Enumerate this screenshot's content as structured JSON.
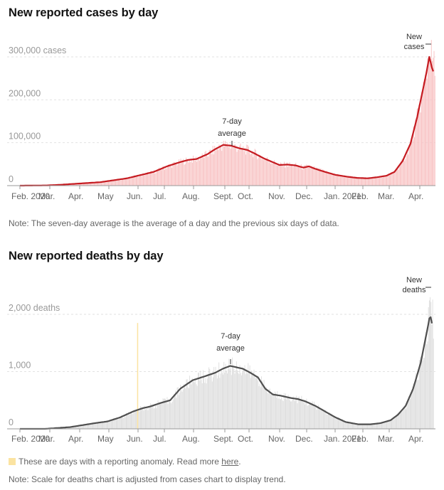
{
  "chart_data": [
    {
      "type": "bar",
      "title": "New reported cases by day",
      "x_ticks": [
        "Feb. 2020",
        "Mar.",
        "Apr.",
        "May",
        "Jun.",
        "Jul.",
        "Aug.",
        "Sept.",
        "Oct.",
        "Nov.",
        "Dec.",
        "Jan. 2021",
        "Feb.",
        "Mar.",
        "Apr."
      ],
      "y_ticks": [
        {
          "value": 0,
          "label": "0"
        },
        {
          "value": 100000,
          "label": "100,000"
        },
        {
          "value": 200000,
          "label": "200,000"
        },
        {
          "value": 300000,
          "label": "300,000 cases"
        }
      ],
      "ylim": [
        0,
        300000
      ],
      "xlim_months": [
        0,
        14.7
      ],
      "series": [
        {
          "name": "7-day average",
          "style": "line",
          "color": "#c51b21",
          "points": [
            [
              0,
              0
            ],
            [
              1,
              500
            ],
            [
              1.5,
              2000
            ],
            [
              2,
              4000
            ],
            [
              3,
              8000
            ],
            [
              4,
              17000
            ],
            [
              5,
              32000
            ],
            [
              5.5,
              45000
            ],
            [
              6,
              55000
            ],
            [
              6.3,
              60000
            ],
            [
              6.6,
              62000
            ],
            [
              7,
              73000
            ],
            [
              7.3,
              85000
            ],
            [
              7.6,
              95000
            ],
            [
              7.9,
              93000
            ],
            [
              8.2,
              87000
            ],
            [
              8.5,
              83000
            ],
            [
              8.8,
              74000
            ],
            [
              9.1,
              64000
            ],
            [
              9.4,
              56000
            ],
            [
              9.7,
              48000
            ],
            [
              10,
              49000
            ],
            [
              10.3,
              47000
            ],
            [
              10.6,
              42000
            ],
            [
              10.8,
              45000
            ],
            [
              11,
              40000
            ],
            [
              11.4,
              32000
            ],
            [
              11.8,
              25000
            ],
            [
              12.2,
              21000
            ],
            [
              12.6,
              18000
            ],
            [
              13,
              17000
            ],
            [
              13.4,
              20000
            ],
            [
              13.7,
              23000
            ],
            [
              14,
              32000
            ],
            [
              14.3,
              57000
            ],
            [
              14.6,
              98000
            ],
            [
              14.85,
              160000
            ],
            [
              15.05,
              220000
            ],
            [
              15.18,
              258000
            ],
            [
              15.3,
              300000
            ],
            [
              15.36,
              285000
            ],
            [
              15.42,
              270000
            ],
            [
              15.5,
              260000
            ]
          ]
        },
        {
          "name": "New cases",
          "style": "bars",
          "color": "#f8c2c3",
          "points": [
            [
              0,
              0
            ],
            [
              1,
              500
            ],
            [
              1.5,
              2000
            ],
            [
              2,
              4000
            ],
            [
              3,
              8000
            ],
            [
              4,
              17000
            ],
            [
              5,
              32000
            ],
            [
              5.5,
              45000
            ],
            [
              6,
              55000
            ],
            [
              6.3,
              60000
            ],
            [
              6.6,
              62000
            ],
            [
              7,
              73000
            ],
            [
              7.3,
              85000
            ],
            [
              7.6,
              95000
            ],
            [
              7.9,
              93000
            ],
            [
              8.2,
              87000
            ],
            [
              8.5,
              83000
            ],
            [
              8.8,
              74000
            ],
            [
              9.1,
              64000
            ],
            [
              9.4,
              56000
            ],
            [
              9.7,
              48000
            ],
            [
              10,
              49000
            ],
            [
              10.3,
              47000
            ],
            [
              10.6,
              42000
            ],
            [
              10.8,
              45000
            ],
            [
              11,
              40000
            ],
            [
              11.4,
              32000
            ],
            [
              11.8,
              25000
            ],
            [
              12.2,
              21000
            ],
            [
              12.6,
              18000
            ],
            [
              13,
              17000
            ],
            [
              13.4,
              20000
            ],
            [
              13.7,
              23000
            ],
            [
              14,
              32000
            ],
            [
              14.3,
              57000
            ],
            [
              14.6,
              98000
            ],
            [
              14.85,
              160000
            ],
            [
              15.05,
              220000
            ],
            [
              15.18,
              258000
            ],
            [
              15.3,
              330000
            ],
            [
              15.36,
              300000
            ],
            [
              15.42,
              290000
            ],
            [
              15.5,
              270000
            ]
          ]
        }
      ],
      "annotations": [
        {
          "text": [
            "7-day",
            "average"
          ],
          "target": "7-day average"
        },
        {
          "text": [
            "New",
            "cases"
          ],
          "target": "New cases"
        }
      ]
    },
    {
      "type": "bar",
      "title": "New reported deaths by day",
      "x_ticks": [
        "Feb. 2020",
        "Mar.",
        "Apr.",
        "May",
        "Jun.",
        "Jul.",
        "Aug.",
        "Sept.",
        "Oct.",
        "Nov.",
        "Dec.",
        "Jan. 2021",
        "Feb.",
        "Mar.",
        "Apr."
      ],
      "y_ticks": [
        {
          "value": 0,
          "label": "0"
        },
        {
          "value": 1000,
          "label": "1,000"
        },
        {
          "value": 2000,
          "label": "2,000 deaths"
        }
      ],
      "ylim": [
        0,
        2000
      ],
      "series": [
        {
          "name": "7-day average",
          "style": "line",
          "color": "#4f4f4f",
          "points": [
            [
              0,
              0
            ],
            [
              1,
              0
            ],
            [
              2,
              30
            ],
            [
              3,
              100
            ],
            [
              3.5,
              130
            ],
            [
              4,
              200
            ],
            [
              4.5,
              300
            ],
            [
              4.9,
              360
            ],
            [
              5.2,
              390
            ],
            [
              5.6,
              450
            ],
            [
              6,
              500
            ],
            [
              6.4,
              700
            ],
            [
              6.9,
              850
            ],
            [
              7.4,
              920
            ],
            [
              7.8,
              980
            ],
            [
              8.1,
              1050
            ],
            [
              8.4,
              1100
            ],
            [
              8.6,
              1080
            ],
            [
              8.9,
              1050
            ],
            [
              9.2,
              980
            ],
            [
              9.5,
              900
            ],
            [
              9.8,
              700
            ],
            [
              10.1,
              600
            ],
            [
              10.4,
              580
            ],
            [
              10.8,
              540
            ],
            [
              11.1,
              520
            ],
            [
              11.4,
              480
            ],
            [
              11.8,
              400
            ],
            [
              12.2,
              300
            ],
            [
              12.6,
              200
            ],
            [
              13,
              120
            ],
            [
              13.5,
              80
            ],
            [
              14,
              80
            ],
            [
              14.4,
              100
            ],
            [
              14.8,
              150
            ],
            [
              15.1,
              250
            ],
            [
              15.4,
              400
            ],
            [
              15.7,
              700
            ],
            [
              16,
              1150
            ],
            [
              16.25,
              1700
            ],
            [
              16.38,
              2000
            ],
            [
              16.44,
              1850
            ],
            [
              16.5,
              1800
            ]
          ]
        },
        {
          "name": "New deaths",
          "style": "bars",
          "color": "#dcdcdc",
          "points": [
            [
              0,
              0
            ],
            [
              1,
              0
            ],
            [
              2,
              30
            ],
            [
              3,
              100
            ],
            [
              3.5,
              130
            ],
            [
              4,
              200
            ],
            [
              4.5,
              300
            ],
            [
              4.9,
              360
            ],
            [
              5.2,
              390
            ],
            [
              5.6,
              450
            ],
            [
              6,
              500
            ],
            [
              6.4,
              700
            ],
            [
              6.9,
              850
            ],
            [
              7.4,
              920
            ],
            [
              7.8,
              980
            ],
            [
              8.1,
              1050
            ],
            [
              8.4,
              1100
            ],
            [
              8.6,
              1080
            ],
            [
              8.9,
              1050
            ],
            [
              9.2,
              980
            ],
            [
              9.5,
              900
            ],
            [
              9.8,
              700
            ],
            [
              10.1,
              600
            ],
            [
              10.4,
              580
            ],
            [
              10.8,
              540
            ],
            [
              11.1,
              520
            ],
            [
              11.4,
              480
            ],
            [
              11.8,
              400
            ],
            [
              12.2,
              300
            ],
            [
              12.6,
              200
            ],
            [
              13,
              120
            ],
            [
              13.5,
              80
            ],
            [
              14,
              80
            ],
            [
              14.4,
              100
            ],
            [
              14.8,
              150
            ],
            [
              15.1,
              250
            ],
            [
              15.4,
              400
            ],
            [
              15.7,
              700
            ],
            [
              16,
              1150
            ],
            [
              16.25,
              1700
            ],
            [
              16.38,
              2300
            ],
            [
              16.44,
              2100
            ],
            [
              16.5,
              1850
            ]
          ]
        }
      ],
      "anomaly_day_month": 4.7,
      "annotations": [
        {
          "text": [
            "7-day",
            "average"
          ],
          "target": "7-day average"
        },
        {
          "text": [
            "New",
            "deaths"
          ],
          "target": "New deaths"
        }
      ]
    }
  ],
  "notes": {
    "cases": "Note: The seven-day average is the average of a day and the previous six days of data.",
    "deaths": "Note: Scale for deaths chart is adjusted from cases chart to display trend."
  },
  "legend": {
    "anomaly_text": "These are days with a reporting anomaly. Read more ",
    "link_text": "here",
    "suffix": ".",
    "anomaly_color": "#fbe3a1"
  }
}
